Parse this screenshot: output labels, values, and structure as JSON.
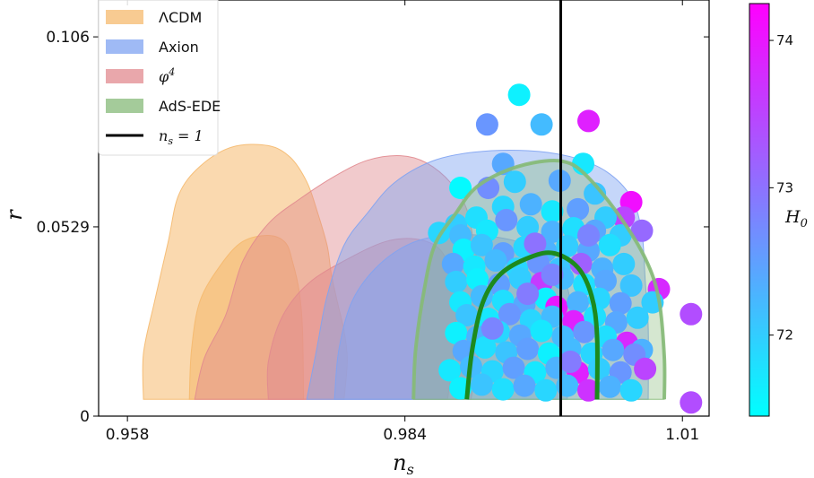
{
  "chart_data": {
    "type": "scatter",
    "xlabel": "n_s",
    "ylabel": "r",
    "xlim": [
      0.9553,
      1.0125
    ],
    "ylim": [
      0,
      0.1163
    ],
    "xticks": [
      {
        "value": 0.958,
        "label": "0.958"
      },
      {
        "value": 0.984,
        "label": "0.984"
      },
      {
        "value": 1.01,
        "label": "1.01"
      }
    ],
    "yticks": [
      {
        "value": 0,
        "label": "0"
      },
      {
        "value": 0.0529,
        "label": "0.0529"
      },
      {
        "value": 0.106,
        "label": "0.106"
      }
    ],
    "vline": {
      "x": 0.9986,
      "label": "n_s = 1",
      "color": "#000000"
    },
    "legend": {
      "placement": "top-left",
      "entries": [
        {
          "label": "ΛCDM",
          "color": "#f5b96e",
          "kind": "patch"
        },
        {
          "label": "Axion",
          "color": "#7fa3f2",
          "kind": "patch"
        },
        {
          "label": "φ⁴",
          "color": "#e18a8f",
          "kind": "patch"
        },
        {
          "label": "AdS-EDE",
          "color": "#86ba78",
          "kind": "patch"
        },
        {
          "label": "n_s = 1",
          "color": "#000000",
          "kind": "line"
        }
      ]
    },
    "contours": [
      {
        "name": "ΛCDM",
        "level": "95%",
        "color": "#f5b96e",
        "opacity": 0.55,
        "points": [
          [
            0.9595,
            0.0047
          ],
          [
            0.9595,
            0.0175
          ],
          [
            0.9605,
            0.0315
          ],
          [
            0.9618,
            0.0485
          ],
          [
            0.9628,
            0.0618
          ],
          [
            0.9648,
            0.0698
          ],
          [
            0.9678,
            0.0752
          ],
          [
            0.9712,
            0.0756
          ],
          [
            0.9733,
            0.0722
          ],
          [
            0.9748,
            0.0655
          ],
          [
            0.9757,
            0.058
          ],
          [
            0.9767,
            0.0478
          ],
          [
            0.9771,
            0.0398
          ],
          [
            0.9777,
            0.0315
          ],
          [
            0.9783,
            0.0238
          ],
          [
            0.9786,
            0.0157
          ],
          [
            0.9783,
            0.0047
          ]
        ]
      },
      {
        "name": "ΛCDM",
        "level": "68%",
        "color": "#f5b96e",
        "opacity": 0.6,
        "points": [
          [
            0.9638,
            0.0047
          ],
          [
            0.964,
            0.0185
          ],
          [
            0.9648,
            0.0322
          ],
          [
            0.9668,
            0.0425
          ],
          [
            0.9688,
            0.0488
          ],
          [
            0.9712,
            0.0505
          ],
          [
            0.9728,
            0.0485
          ],
          [
            0.9735,
            0.0428
          ],
          [
            0.9741,
            0.0348
          ],
          [
            0.9744,
            0.0245
          ],
          [
            0.9745,
            0.0047
          ]
        ]
      },
      {
        "name": "φ⁴",
        "level": "95%",
        "color": "#e18a8f",
        "opacity": 0.45,
        "points": [
          [
            0.9643,
            0.0047
          ],
          [
            0.9652,
            0.0162
          ],
          [
            0.9672,
            0.0282
          ],
          [
            0.9688,
            0.0432
          ],
          [
            0.9712,
            0.0538
          ],
          [
            0.9742,
            0.0608
          ],
          [
            0.9775,
            0.0672
          ],
          [
            0.9805,
            0.0715
          ],
          [
            0.9836,
            0.0728
          ],
          [
            0.986,
            0.0708
          ],
          [
            0.9883,
            0.0652
          ],
          [
            0.9898,
            0.0578
          ],
          [
            0.9905,
            0.0475
          ],
          [
            0.9913,
            0.0345
          ],
          [
            0.991,
            0.0205
          ],
          [
            0.9902,
            0.0047
          ]
        ]
      },
      {
        "name": "φ⁴",
        "level": "68%",
        "color": "#e18a8f",
        "opacity": 0.5,
        "points": [
          [
            0.9712,
            0.0047
          ],
          [
            0.9712,
            0.0152
          ],
          [
            0.9725,
            0.0278
          ],
          [
            0.975,
            0.0372
          ],
          [
            0.9788,
            0.0442
          ],
          [
            0.9822,
            0.0488
          ],
          [
            0.985,
            0.0495
          ],
          [
            0.9872,
            0.0468
          ],
          [
            0.9883,
            0.0402
          ],
          [
            0.9888,
            0.0312
          ],
          [
            0.9886,
            0.0185
          ],
          [
            0.988,
            0.0047
          ]
        ]
      },
      {
        "name": "Axion",
        "level": "95%",
        "color": "#7fa3f2",
        "opacity": 0.45,
        "points": [
          [
            0.9748,
            0.0047
          ],
          [
            0.9757,
            0.0182
          ],
          [
            0.9767,
            0.0335
          ],
          [
            0.9783,
            0.0478
          ],
          [
            0.9805,
            0.0568
          ],
          [
            0.983,
            0.0652
          ],
          [
            0.9865,
            0.0712
          ],
          [
            0.9905,
            0.0738
          ],
          [
            0.9955,
            0.0742
          ],
          [
            0.9995,
            0.0725
          ],
          [
            1.0028,
            0.0685
          ],
          [
            1.0052,
            0.0612
          ],
          [
            1.0062,
            0.0512
          ],
          [
            1.0065,
            0.0385
          ],
          [
            1.0068,
            0.0245
          ],
          [
            1.0068,
            0.0047
          ]
        ]
      },
      {
        "name": "Axion",
        "level": "68%",
        "color": "#7fa3f2",
        "opacity": 0.5,
        "points": [
          [
            0.9774,
            0.0047
          ],
          [
            0.9778,
            0.0185
          ],
          [
            0.979,
            0.0318
          ],
          [
            0.9812,
            0.0412
          ],
          [
            0.9842,
            0.0478
          ],
          [
            0.9875,
            0.0505
          ],
          [
            0.9912,
            0.0505
          ],
          [
            0.9948,
            0.0485
          ],
          [
            0.9976,
            0.0435
          ],
          [
            0.9992,
            0.0362
          ],
          [
            0.9995,
            0.0255
          ],
          [
            0.9992,
            0.0047
          ]
        ]
      },
      {
        "name": "AdS-EDE",
        "level": "95%",
        "color": "#86ba78",
        "opacity": 0.35,
        "points": [
          [
            0.9848,
            0.0047
          ],
          [
            0.985,
            0.0185
          ],
          [
            0.9858,
            0.0352
          ],
          [
            0.9868,
            0.0478
          ],
          [
            0.9888,
            0.0568
          ],
          [
            0.9905,
            0.0635
          ],
          [
            0.993,
            0.068
          ],
          [
            0.996,
            0.0708
          ],
          [
            0.9988,
            0.0712
          ],
          [
            1.0008,
            0.0678
          ],
          [
            1.0038,
            0.0572
          ],
          [
            1.0065,
            0.0442
          ],
          [
            1.0078,
            0.0325
          ],
          [
            1.0083,
            0.0165
          ],
          [
            1.0083,
            0.0047
          ]
        ]
      },
      {
        "name": "AdS-EDE",
        "level": "68%",
        "color": "#1d8a1d",
        "opacity": 0.0,
        "points": [
          [
            0.9898,
            0.0047
          ],
          [
            0.9903,
            0.0185
          ],
          [
            0.9913,
            0.0318
          ],
          [
            0.993,
            0.0398
          ],
          [
            0.9958,
            0.0445
          ],
          [
            0.998,
            0.0455
          ],
          [
            1.0002,
            0.0415
          ],
          [
            1.0015,
            0.0335
          ],
          [
            1.002,
            0.0225
          ],
          [
            1.002,
            0.0047
          ]
        ]
      }
    ],
    "colorbar": {
      "label": "H_0",
      "min": 71.45,
      "max": 74.25,
      "ticks": [
        {
          "value": 72,
          "label": "72"
        },
        {
          "value": 73,
          "label": "73"
        },
        {
          "value": 74,
          "label": "74"
        }
      ],
      "low_color": "#00ffff",
      "high_color": "#ff00ff"
    },
    "scatter_points": [
      [
        0.9947,
        0.0898,
        71.6
      ],
      [
        0.9917,
        0.0815,
        72.6
      ],
      [
        0.9968,
        0.0815,
        72.2
      ],
      [
        1.0012,
        0.0825,
        73.9
      ],
      [
        0.9932,
        0.0705,
        72.4
      ],
      [
        1.0007,
        0.0705,
        71.7
      ],
      [
        0.9892,
        0.0638,
        71.5
      ],
      [
        0.9918,
        0.0638,
        72.7
      ],
      [
        0.9943,
        0.0655,
        72.0
      ],
      [
        0.9985,
        0.0658,
        72.4
      ],
      [
        1.0018,
        0.0622,
        72.1
      ],
      [
        1.0052,
        0.0598,
        74.1
      ],
      [
        1.0045,
        0.0555,
        73.5
      ],
      [
        1.0062,
        0.0518,
        73.1
      ],
      [
        0.9888,
        0.0535,
        72.0
      ],
      [
        0.9907,
        0.0555,
        71.8
      ],
      [
        0.9932,
        0.0585,
        71.9
      ],
      [
        0.9958,
        0.0592,
        72.3
      ],
      [
        0.9978,
        0.0572,
        71.7
      ],
      [
        1.0002,
        0.0578,
        72.5
      ],
      [
        1.0028,
        0.0555,
        72.0
      ],
      [
        0.9872,
        0.0512,
        71.9
      ],
      [
        0.9892,
        0.0505,
        72.2
      ],
      [
        0.9917,
        0.0518,
        71.7
      ],
      [
        0.9935,
        0.0548,
        72.6
      ],
      [
        0.9955,
        0.0528,
        72.0
      ],
      [
        0.9978,
        0.0515,
        72.3
      ],
      [
        0.9998,
        0.0525,
        71.8
      ],
      [
        1.0018,
        0.0518,
        72.4
      ],
      [
        1.0042,
        0.0505,
        72.0
      ],
      [
        0.9895,
        0.0465,
        71.6
      ],
      [
        0.9912,
        0.0478,
        72.1
      ],
      [
        0.9932,
        0.0455,
        72.5
      ],
      [
        0.9952,
        0.0472,
        71.9
      ],
      [
        0.9972,
        0.0462,
        72.3
      ],
      [
        0.9992,
        0.0475,
        72.0
      ],
      [
        1.0012,
        0.0462,
        72.4
      ],
      [
        1.0032,
        0.0478,
        71.8
      ],
      [
        0.9885,
        0.0425,
        72.4
      ],
      [
        0.9905,
        0.0418,
        71.7
      ],
      [
        0.9925,
        0.0435,
        72.2
      ],
      [
        0.9945,
        0.0412,
        71.9
      ],
      [
        0.9965,
        0.0428,
        72.6
      ],
      [
        0.9985,
        0.0412,
        72.1
      ],
      [
        1.0005,
        0.0425,
        73.2
      ],
      [
        1.0025,
        0.0412,
        72.3
      ],
      [
        1.0045,
        0.0425,
        72.0
      ],
      [
        0.9888,
        0.0375,
        72.0
      ],
      [
        0.9908,
        0.0382,
        71.6
      ],
      [
        0.9928,
        0.0368,
        72.5
      ],
      [
        0.9948,
        0.0385,
        72.0
      ],
      [
        0.9968,
        0.0372,
        73.6
      ],
      [
        0.9988,
        0.0385,
        72.2
      ],
      [
        1.0008,
        0.0368,
        71.8
      ],
      [
        1.0028,
        0.0378,
        72.4
      ],
      [
        1.0052,
        0.0365,
        72.1
      ],
      [
        1.0078,
        0.0355,
        73.8
      ],
      [
        0.9892,
        0.0318,
        71.7
      ],
      [
        0.9912,
        0.0335,
        72.2
      ],
      [
        0.9932,
        0.0322,
        71.8
      ],
      [
        0.9952,
        0.0312,
        72.4
      ],
      [
        0.9972,
        0.0328,
        71.6
      ],
      [
        0.9982,
        0.0305,
        74.0
      ],
      [
        1.0002,
        0.0318,
        72.3
      ],
      [
        1.0022,
        0.0328,
        71.9
      ],
      [
        1.0042,
        0.0315,
        72.5
      ],
      [
        1.0072,
        0.0318,
        72.0
      ],
      [
        1.0108,
        0.0285,
        73.4
      ],
      [
        0.9898,
        0.0282,
        72.1
      ],
      [
        0.9918,
        0.0272,
        71.7
      ],
      [
        0.9938,
        0.0285,
        72.6
      ],
      [
        0.9958,
        0.0268,
        71.9
      ],
      [
        0.9978,
        0.0278,
        72.2
      ],
      [
        0.9998,
        0.0265,
        73.9
      ],
      [
        1.0018,
        0.0278,
        71.8
      ],
      [
        1.0038,
        0.0262,
        72.4
      ],
      [
        1.0058,
        0.0275,
        72.0
      ],
      [
        0.9888,
        0.0232,
        71.6
      ],
      [
        0.9908,
        0.0222,
        72.3
      ],
      [
        0.9928,
        0.0235,
        71.9
      ],
      [
        0.9948,
        0.0225,
        72.4
      ],
      [
        0.9968,
        0.0238,
        71.7
      ],
      [
        0.9988,
        0.0222,
        72.2
      ],
      [
        1.0008,
        0.0235,
        72.6
      ],
      [
        1.0028,
        0.0222,
        71.8
      ],
      [
        1.0048,
        0.0205,
        73.8
      ],
      [
        1.0062,
        0.0185,
        72.3
      ],
      [
        0.9895,
        0.0182,
        72.4
      ],
      [
        0.9915,
        0.0192,
        71.8
      ],
      [
        0.9935,
        0.0178,
        72.1
      ],
      [
        0.9955,
        0.0188,
        72.5
      ],
      [
        0.9975,
        0.0175,
        71.6
      ],
      [
        0.9995,
        0.0188,
        72.2
      ],
      [
        1.0015,
        0.0175,
        71.9
      ],
      [
        1.0035,
        0.0185,
        72.4
      ],
      [
        1.0055,
        0.0172,
        72.7
      ],
      [
        1.0065,
        0.0132,
        73.5
      ],
      [
        0.9882,
        0.0128,
        71.7
      ],
      [
        0.9902,
        0.0138,
        72.2
      ],
      [
        0.9922,
        0.0125,
        71.9
      ],
      [
        0.9942,
        0.0135,
        72.5
      ],
      [
        0.9962,
        0.0122,
        71.7
      ],
      [
        0.9982,
        0.0135,
        72.3
      ],
      [
        1.0002,
        0.0122,
        73.9
      ],
      [
        1.0022,
        0.0132,
        72.0
      ],
      [
        1.0042,
        0.0122,
        72.6
      ],
      [
        0.9892,
        0.0078,
        71.6
      ],
      [
        0.9912,
        0.0088,
        72.1
      ],
      [
        0.9932,
        0.0075,
        71.8
      ],
      [
        0.9952,
        0.0085,
        72.4
      ],
      [
        0.9972,
        0.0072,
        71.9
      ],
      [
        0.9992,
        0.0085,
        72.2
      ],
      [
        1.0012,
        0.0072,
        73.7
      ],
      [
        1.0032,
        0.0082,
        72.3
      ],
      [
        1.0052,
        0.0072,
        71.9
      ],
      [
        1.0108,
        0.0038,
        73.4
      ],
      [
        0.9962,
        0.0482,
        73.0
      ],
      [
        0.9978,
        0.0395,
        72.8
      ],
      [
        0.9955,
        0.0342,
        72.9
      ],
      [
        1.0012,
        0.0505,
        72.8
      ],
      [
        0.9922,
        0.0245,
        72.8
      ],
      [
        0.9995,
        0.0152,
        72.9
      ]
    ]
  }
}
